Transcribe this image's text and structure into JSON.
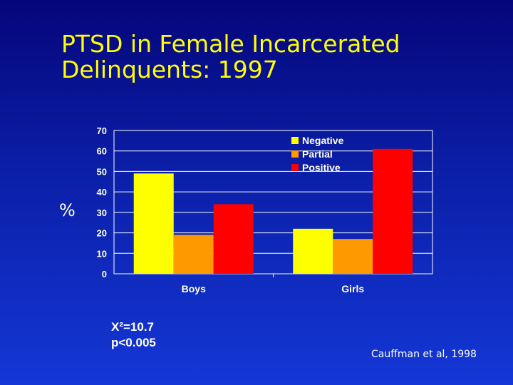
{
  "slide": {
    "title_line1": "PTSD in Female Incarcerated",
    "title_line2": "Delinquents: 1997",
    "ylabel": "%",
    "stat_line1": "X²=10.7",
    "stat_line2": "p<0.005",
    "citation": "Cauffman et al,  1998"
  },
  "colors": {
    "Negative": "#ffff00",
    "Partial": "#ff9900",
    "Positive": "#ff0000",
    "text": "#ffffff",
    "title": "#ffff00"
  },
  "chart_data": {
    "type": "bar",
    "categories": [
      "Boys",
      "Girls"
    ],
    "series": [
      {
        "name": "Negative",
        "values": [
          49,
          22
        ]
      },
      {
        "name": "Partial",
        "values": [
          19,
          17
        ]
      },
      {
        "name": "Positive",
        "values": [
          34,
          61
        ]
      }
    ],
    "ylim": [
      0,
      70
    ],
    "yticks": [
      0,
      10,
      20,
      30,
      40,
      50,
      60,
      70
    ],
    "ylabel": "%",
    "xlabel": "",
    "grid": true,
    "legend_position": "top-right"
  }
}
